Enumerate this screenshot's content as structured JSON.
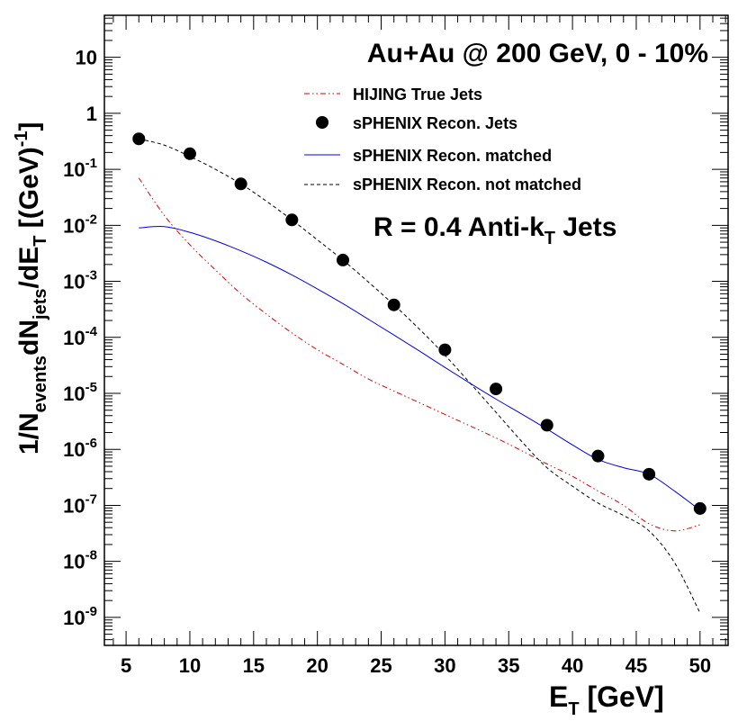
{
  "chart_data": {
    "type": "line",
    "title": "Au+Au @ 200 GeV, 0 - 10%",
    "annotation": {
      "main": "R = 0.4 Anti-k",
      "sub": "T",
      "rest": " Jets"
    },
    "xlabel": {
      "main": "E",
      "sub": "T",
      "rest": " [GeV]"
    },
    "ylabel": {
      "p1": "1/N",
      "s1": "events",
      "p2": "dN",
      "s2": "jets",
      "p3": "/dE",
      "s3": "T",
      "p4": " [(GeV)",
      "sup": "-1",
      "p5": "]"
    },
    "xlim": [
      3.3,
      52.2
    ],
    "ylim_log10": [
      -9.5,
      1.75
    ],
    "y_scale": "log",
    "x_ticks": [
      5,
      10,
      15,
      20,
      25,
      30,
      35,
      40,
      45,
      50
    ],
    "y_ticks": [
      {
        "exp": 1,
        "base": "10",
        "sup": ""
      },
      {
        "exp": 0,
        "base": "1",
        "sup": ""
      },
      {
        "exp": -1,
        "base": "10",
        "sup": "-1"
      },
      {
        "exp": -2,
        "base": "10",
        "sup": "-2"
      },
      {
        "exp": -3,
        "base": "10",
        "sup": "-3"
      },
      {
        "exp": -4,
        "base": "10",
        "sup": "-4"
      },
      {
        "exp": -5,
        "base": "10",
        "sup": "-5"
      },
      {
        "exp": -6,
        "base": "10",
        "sup": "-6"
      },
      {
        "exp": -7,
        "base": "10",
        "sup": "-7"
      },
      {
        "exp": -8,
        "base": "10",
        "sup": "-8"
      },
      {
        "exp": -9,
        "base": "10",
        "sup": "-9"
      }
    ],
    "legend_position": "top-right",
    "series": [
      {
        "name": "HIJING True Jets",
        "style": "dash-dot-dot",
        "color": "#e00000",
        "points": [
          [
            6,
            0.07
          ],
          [
            8,
            0.015
          ],
          [
            10,
            0.0045
          ],
          [
            12,
            0.0016
          ],
          [
            14,
            0.0006
          ],
          [
            16,
            0.00026
          ],
          [
            18,
            0.00012
          ],
          [
            20,
            6e-05
          ],
          [
            22,
            3.3e-05
          ],
          [
            24,
            1.8e-05
          ],
          [
            26,
            1.1e-05
          ],
          [
            28,
            6.8e-06
          ],
          [
            30,
            4.2e-06
          ],
          [
            32,
            2.6e-06
          ],
          [
            34,
            1.6e-06
          ],
          [
            36,
            9.5e-07
          ],
          [
            38,
            5.5e-07
          ],
          [
            40,
            3.3e-07
          ],
          [
            42,
            1.8e-07
          ],
          [
            44,
            1e-07
          ],
          [
            46,
            4.7e-08
          ],
          [
            48,
            3.5e-08
          ],
          [
            50,
            4.5e-08
          ]
        ]
      },
      {
        "name": "sPHENIX Recon. Jets",
        "style": "markers",
        "color": "#000000",
        "points": [
          [
            6,
            0.35
          ],
          [
            10,
            0.19
          ],
          [
            14,
            0.055
          ],
          [
            18,
            0.0125
          ],
          [
            22,
            0.0024
          ],
          [
            26,
            0.00038
          ],
          [
            30,
            6e-05
          ],
          [
            34,
            1.2e-05
          ],
          [
            38,
            2.7e-06
          ],
          [
            42,
            7.6e-07
          ],
          [
            46,
            3.6e-07
          ],
          [
            50,
            8.8e-08
          ]
        ]
      },
      {
        "name": "sPHENIX Recon. matched",
        "style": "solid",
        "color": "#0000ee",
        "points": [
          [
            6,
            0.009
          ],
          [
            8,
            0.0095
          ],
          [
            10,
            0.0075
          ],
          [
            12,
            0.0053
          ],
          [
            14,
            0.0035
          ],
          [
            16,
            0.0022
          ],
          [
            18,
            0.0013
          ],
          [
            20,
            0.00073
          ],
          [
            22,
            0.0004
          ],
          [
            24,
            0.00021
          ],
          [
            26,
            0.00011
          ],
          [
            28,
            5.7e-05
          ],
          [
            30,
            2.9e-05
          ],
          [
            32,
            1.5e-05
          ],
          [
            34,
            7.9e-06
          ],
          [
            36,
            4.3e-06
          ],
          [
            38,
            2.3e-06
          ],
          [
            40,
            1.2e-06
          ],
          [
            42,
            6.6e-07
          ],
          [
            44,
            4.7e-07
          ],
          [
            46,
            3.6e-07
          ],
          [
            48,
            1.8e-07
          ],
          [
            50,
            8.2e-08
          ]
        ]
      },
      {
        "name": "sPHENIX Recon. not matched",
        "style": "dashed",
        "color": "#000000",
        "points": [
          [
            6,
            0.35
          ],
          [
            8,
            0.27
          ],
          [
            10,
            0.17
          ],
          [
            12,
            0.1
          ],
          [
            14,
            0.055
          ],
          [
            16,
            0.027
          ],
          [
            18,
            0.0125
          ],
          [
            20,
            0.0055
          ],
          [
            22,
            0.0024
          ],
          [
            24,
            0.00097
          ],
          [
            26,
            0.00038
          ],
          [
            28,
            0.00014
          ],
          [
            30,
            4.8e-05
          ],
          [
            32,
            1.5e-05
          ],
          [
            34,
            4.6e-06
          ],
          [
            36,
            1.4e-06
          ],
          [
            38,
            4.7e-07
          ],
          [
            40,
            2.2e-07
          ],
          [
            42,
            1.1e-07
          ],
          [
            44,
            6.6e-08
          ],
          [
            46,
            3.5e-08
          ],
          [
            48,
            9.5e-09
          ],
          [
            50,
            1.2e-09
          ]
        ]
      }
    ]
  }
}
